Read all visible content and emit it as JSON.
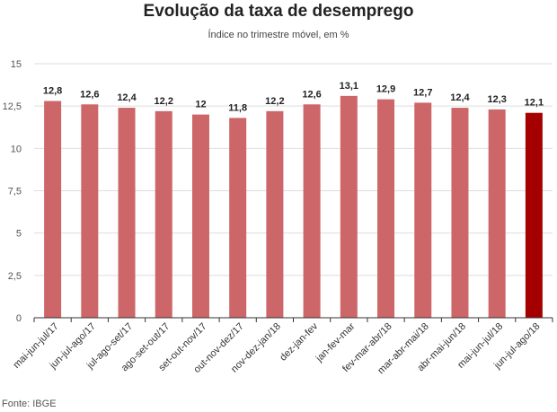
{
  "chart_data": {
    "type": "bar",
    "title": "Evolução da taxa de desemprego",
    "subtitle": "Índice no trimestre móvel, em %",
    "categories": [
      "mai-jun-jul/17",
      "jun-jul-ago/17",
      "jul-ago-set/17",
      "ago-set-out/17",
      "set-out-nov/17",
      "out-nov-dez/17",
      "nov-dez-jan/18",
      "dez-jan-fev",
      "jan-fev-mar",
      "fev-mar-abr/18",
      "mar-abr-mai/18",
      "abr-mai-jun/18",
      "mai-jun-jul/18",
      "jun-jul-ago/18"
    ],
    "values": [
      12.8,
      12.6,
      12.4,
      12.2,
      12,
      11.8,
      12.2,
      12.6,
      13.1,
      12.9,
      12.7,
      12.4,
      12.3,
      12.1
    ],
    "value_labels": [
      "12,8",
      "12,6",
      "12,4",
      "12,2",
      "12",
      "11,8",
      "12,2",
      "12,6",
      "13,1",
      "12,9",
      "12,7",
      "12,4",
      "12,3",
      "12,1"
    ],
    "ylim": [
      0,
      15
    ],
    "yticks": [
      0,
      2.5,
      5,
      7.5,
      10,
      12.5,
      15
    ],
    "ytick_labels": [
      "0",
      "2,5",
      "5",
      "7,5",
      "10",
      "12,5",
      "15"
    ],
    "grid": true,
    "colors": {
      "bar": "#cd6668",
      "highlight": "#a50000",
      "grid": "#dddddd"
    },
    "highlight_index": 13,
    "source": "Fonte: IBGE"
  }
}
